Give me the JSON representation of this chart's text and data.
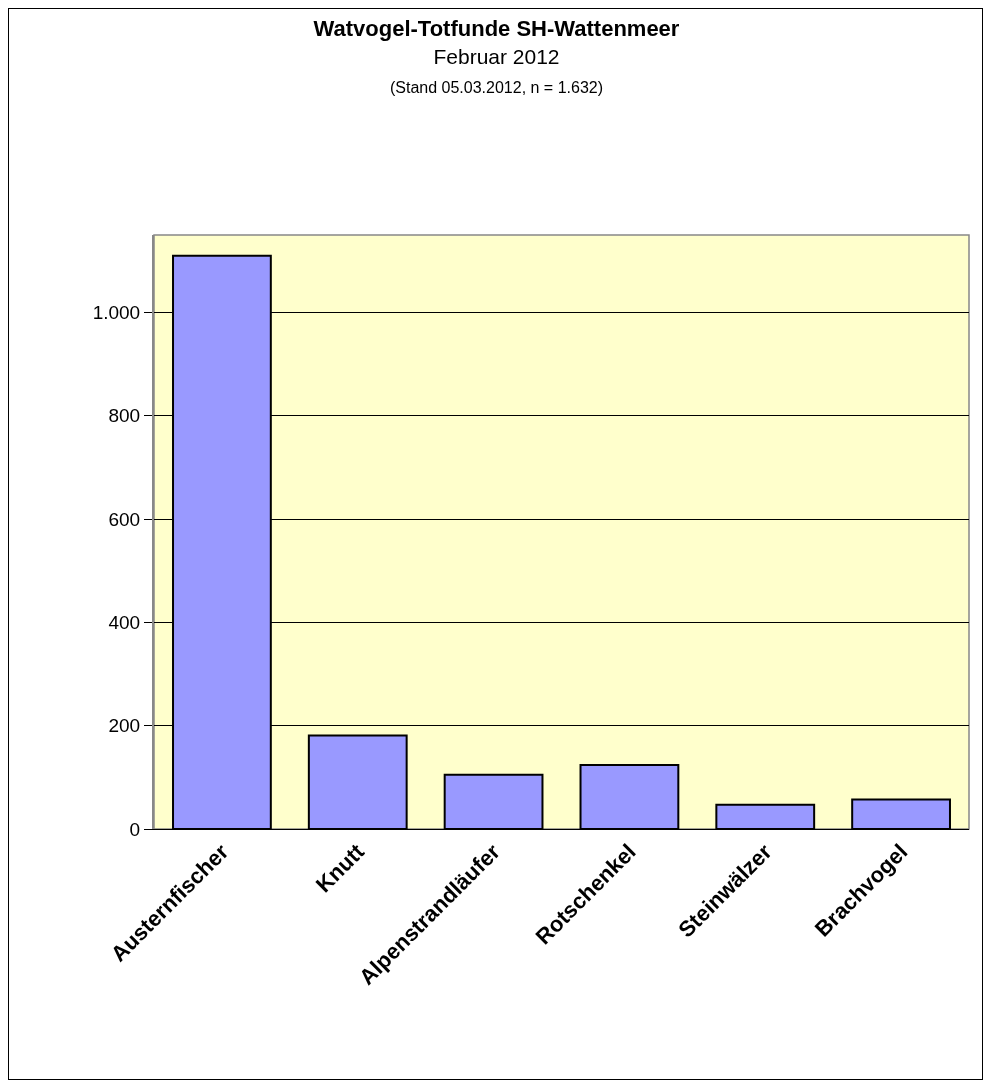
{
  "chart_data": {
    "type": "bar",
    "title": "Watvogel-Totfunde SH-Wattenmeer",
    "subtitle": "Februar 2012",
    "annotations": [
      "(Stand 05.03.2012, n = 1.632)"
    ],
    "categories": [
      "Austernfischer",
      "Knutt",
      "Alpenstrandläufer",
      "Rotschenkel",
      "Steinwälzer",
      "Brachvogel"
    ],
    "values": [
      1110,
      181,
      105,
      124,
      47,
      57
    ],
    "color": "#9999ff",
    "ylim": [
      0,
      1150
    ],
    "yticks": [
      0,
      200,
      400,
      600,
      800,
      {
        "value": 1000,
        "label": "1.000"
      }
    ],
    "grid": "y"
  }
}
